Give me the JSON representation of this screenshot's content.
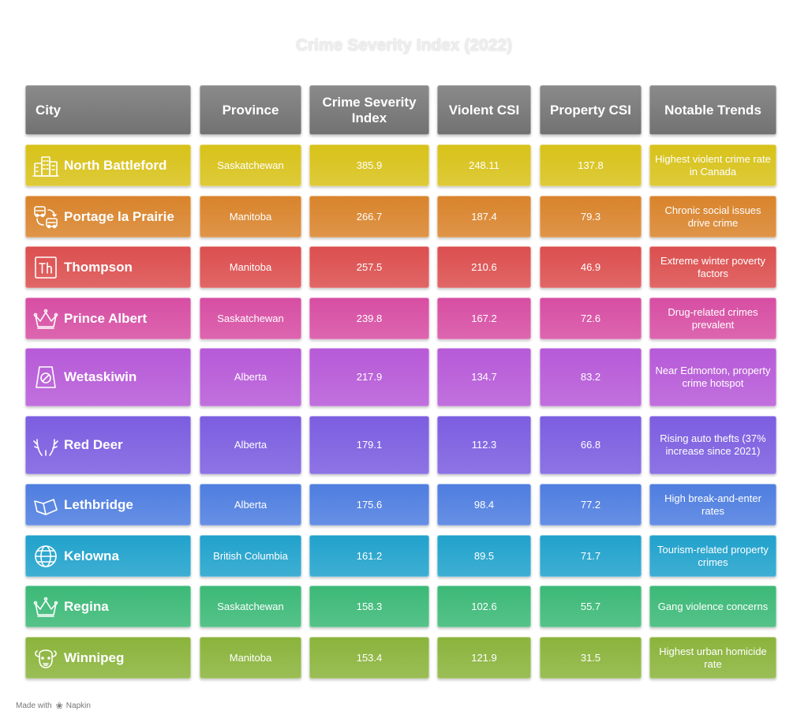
{
  "chart_data": {
    "type": "table",
    "title": "Crime Severity Index (2022)",
    "columns": [
      "City",
      "Province",
      "Crime Severity Index",
      "Violent CSI",
      "Property CSI",
      "Notable Trends"
    ],
    "rows": [
      {
        "city": "North Battleford",
        "province": "Saskatchewan",
        "csi": "385.9",
        "violent": "248.11",
        "property": "137.8",
        "trend": "Highest violent crime rate in Canada",
        "color": "#d8c21a",
        "icon": "buildings-icon"
      },
      {
        "city": "Portage la Prairie",
        "province": "Manitoba",
        "csi": "266.7",
        "violent": "187.4",
        "property": "79.3",
        "trend": "Chronic social issues drive crime",
        "color": "#d9842c",
        "icon": "vehicles-exchange-icon"
      },
      {
        "city": "Thompson",
        "province": "Manitoba",
        "csi": "257.5",
        "violent": "210.6",
        "property": "46.9",
        "trend": "Extreme winter poverty factors",
        "color": "#dc4f4f",
        "icon": "th-letters-icon"
      },
      {
        "city": "Prince Albert",
        "province": "Saskatchewan",
        "csi": "239.8",
        "violent": "167.2",
        "property": "72.6",
        "trend": "Drug-related crimes prevalent",
        "color": "#d74ea3",
        "icon": "crown-icon"
      },
      {
        "city": "Wetaskiwin",
        "province": "Alberta",
        "csi": "217.9",
        "violent": "134.7",
        "property": "83.2",
        "trend": "Near Edmonton, property crime hotspot",
        "color": "#b75ad8",
        "icon": "no-entry-sign-icon"
      },
      {
        "city": "Red Deer",
        "province": "Alberta",
        "csi": "179.1",
        "violent": "112.3",
        "property": "66.8",
        "trend": "Rising auto thefts (37% increase since 2021)",
        "color": "#7c5ee0",
        "icon": "antlers-icon"
      },
      {
        "city": "Lethbridge",
        "province": "Alberta",
        "csi": "175.6",
        "violent": "98.4",
        "property": "77.2",
        "trend": "High break-and-enter rates",
        "color": "#4f7ee0",
        "icon": "bridge-icon"
      },
      {
        "city": "Kelowna",
        "province": "British Columbia",
        "csi": "161.2",
        "violent": "89.5",
        "property": "71.7",
        "trend": "Tourism-related property crimes",
        "color": "#21a2cc",
        "icon": "globe-icon"
      },
      {
        "city": "Regina",
        "province": "Saskatchewan",
        "csi": "158.3",
        "violent": "102.6",
        "property": "55.7",
        "trend": "Gang violence concerns",
        "color": "#3cb977",
        "icon": "crown-icon"
      },
      {
        "city": "Winnipeg",
        "province": "Manitoba",
        "csi": "153.4",
        "violent": "121.9",
        "property": "31.5",
        "trend": "Highest urban homicide rate",
        "color": "#8bb43c",
        "icon": "bison-icon"
      }
    ]
  },
  "footer": {
    "made_with": "Made with",
    "brand": "Napkin",
    "icon": "napkin-logo-icon"
  }
}
